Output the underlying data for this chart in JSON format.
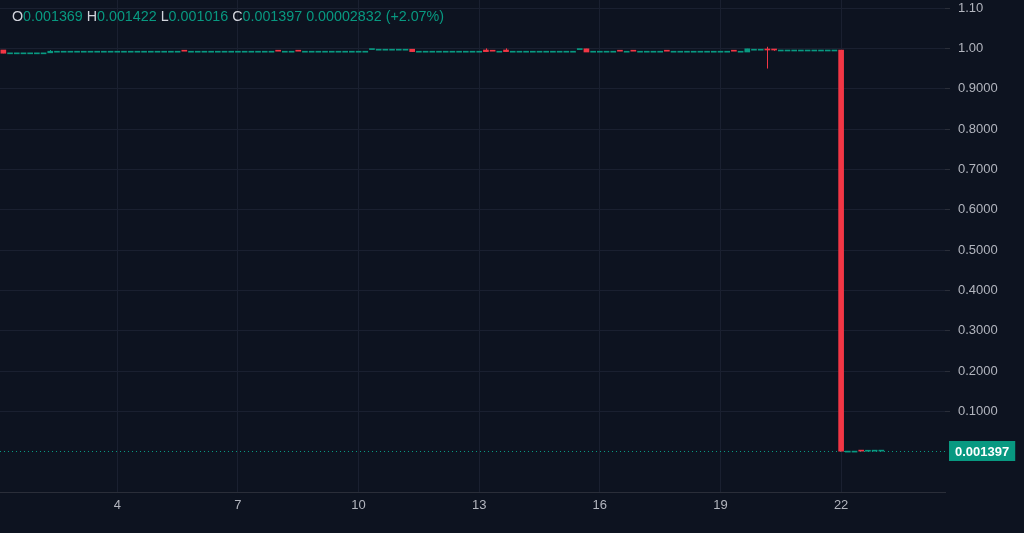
{
  "chart_data": {
    "type": "candlestick",
    "title": "O0.001369 H0.001422 L0.001016 C0.001397 0.00002832 (+2.07%)",
    "categories": [
      null,
      null,
      null,
      null,
      null,
      null,
      null,
      null,
      null,
      null,
      null,
      null,
      null,
      null,
      null,
      null,
      null,
      "4",
      null,
      null,
      null,
      null,
      null,
      null,
      null,
      null,
      null,
      null,
      null,
      null,
      null,
      null,
      null,
      null,
      null,
      "7",
      null,
      null,
      null,
      null,
      null,
      null,
      null,
      null,
      null,
      null,
      null,
      null,
      null,
      null,
      null,
      null,
      null,
      "10",
      null,
      null,
      null,
      null,
      null,
      null,
      null,
      null,
      null,
      null,
      null,
      null,
      null,
      null,
      null,
      null,
      null,
      "13",
      null,
      null,
      null,
      null,
      null,
      null,
      null,
      null,
      null,
      null,
      null,
      null,
      null,
      null,
      null,
      null,
      null,
      "16",
      null,
      null,
      null,
      null,
      null,
      null,
      null,
      null,
      null,
      null,
      null,
      null,
      null,
      null,
      null,
      null,
      null,
      "19",
      null,
      null,
      null,
      null,
      null,
      null,
      null,
      null,
      null,
      null,
      null,
      null,
      null,
      null,
      null,
      null,
      null,
      "22",
      null,
      null,
      null,
      null,
      null,
      null,
      null,
      null,
      null,
      null,
      null,
      null,
      null,
      null,
      null
    ],
    "ohlc": [
      [
        0.996,
        0.996,
        0.988,
        0.988
      ],
      [
        0.989,
        0.989,
        0.989,
        0.989
      ],
      [
        0.989,
        0.989,
        0.989,
        0.989
      ],
      [
        0.989,
        0.989,
        0.989,
        0.989
      ],
      [
        0.989,
        0.989,
        0.989,
        0.989
      ],
      [
        0.989,
        0.989,
        0.989,
        0.989
      ],
      [
        0.989,
        0.989,
        0.989,
        0.989
      ],
      [
        0.989,
        0.996,
        0.989,
        0.993
      ],
      [
        0.993,
        0.993,
        0.993,
        0.993
      ],
      [
        0.993,
        0.993,
        0.993,
        0.993
      ],
      [
        0.993,
        0.993,
        0.993,
        0.993
      ],
      [
        0.993,
        0.993,
        0.993,
        0.993
      ],
      [
        0.993,
        0.993,
        0.993,
        0.993
      ],
      [
        0.993,
        0.993,
        0.993,
        0.993
      ],
      [
        0.993,
        0.993,
        0.993,
        0.993
      ],
      [
        0.993,
        0.993,
        0.993,
        0.993
      ],
      [
        0.993,
        0.993,
        0.993,
        0.993
      ],
      [
        0.993,
        0.993,
        0.993,
        0.993
      ],
      [
        0.993,
        0.993,
        0.993,
        0.993
      ],
      [
        0.993,
        0.993,
        0.993,
        0.993
      ],
      [
        0.993,
        0.993,
        0.993,
        0.993
      ],
      [
        0.993,
        0.993,
        0.993,
        0.993
      ],
      [
        0.993,
        0.993,
        0.993,
        0.993
      ],
      [
        0.993,
        0.993,
        0.993,
        0.993
      ],
      [
        0.993,
        0.993,
        0.993,
        0.993
      ],
      [
        0.993,
        0.993,
        0.993,
        0.993
      ],
      [
        0.993,
        0.993,
        0.993,
        0.993
      ],
      [
        0.994,
        0.994,
        0.993,
        0.993
      ],
      [
        0.993,
        0.993,
        0.993,
        0.993
      ],
      [
        0.993,
        0.993,
        0.993,
        0.993
      ],
      [
        0.993,
        0.993,
        0.993,
        0.993
      ],
      [
        0.993,
        0.993,
        0.993,
        0.993
      ],
      [
        0.993,
        0.993,
        0.993,
        0.993
      ],
      [
        0.993,
        0.993,
        0.993,
        0.993
      ],
      [
        0.993,
        0.993,
        0.993,
        0.993
      ],
      [
        0.993,
        0.993,
        0.993,
        0.993
      ],
      [
        0.993,
        0.993,
        0.993,
        0.993
      ],
      [
        0.993,
        0.993,
        0.993,
        0.993
      ],
      [
        0.993,
        0.993,
        0.993,
        0.993
      ],
      [
        0.993,
        0.993,
        0.993,
        0.993
      ],
      [
        0.993,
        0.993,
        0.993,
        0.993
      ],
      [
        0.994,
        0.994,
        0.993,
        0.993
      ],
      [
        0.993,
        0.993,
        0.993,
        0.993
      ],
      [
        0.993,
        0.993,
        0.993,
        0.993
      ],
      [
        0.994,
        0.994,
        0.993,
        0.993
      ],
      [
        0.993,
        0.993,
        0.993,
        0.993
      ],
      [
        0.993,
        0.993,
        0.993,
        0.993
      ],
      [
        0.993,
        0.993,
        0.993,
        0.993
      ],
      [
        0.993,
        0.993,
        0.993,
        0.993
      ],
      [
        0.993,
        0.993,
        0.993,
        0.993
      ],
      [
        0.993,
        0.993,
        0.993,
        0.993
      ],
      [
        0.993,
        0.993,
        0.993,
        0.993
      ],
      [
        0.993,
        0.993,
        0.993,
        0.993
      ],
      [
        0.993,
        0.993,
        0.993,
        0.993
      ],
      [
        0.993,
        0.993,
        0.993,
        0.993
      ],
      [
        0.997,
        0.998,
        0.997,
        0.998
      ],
      [
        0.998,
        0.998,
        0.998,
        0.998
      ],
      [
        0.998,
        0.998,
        0.998,
        0.998
      ],
      [
        0.998,
        0.998,
        0.998,
        0.998
      ],
      [
        0.998,
        0.998,
        0.998,
        0.998
      ],
      [
        0.998,
        0.998,
        0.998,
        0.998
      ],
      [
        0.998,
        0.998,
        0.991,
        0.992
      ],
      [
        0.993,
        0.993,
        0.993,
        0.993
      ],
      [
        0.993,
        0.993,
        0.993,
        0.993
      ],
      [
        0.993,
        0.993,
        0.993,
        0.993
      ],
      [
        0.993,
        0.993,
        0.993,
        0.993
      ],
      [
        0.993,
        0.993,
        0.993,
        0.993
      ],
      [
        0.993,
        0.993,
        0.993,
        0.993
      ],
      [
        0.993,
        0.993,
        0.993,
        0.993
      ],
      [
        0.993,
        0.993,
        0.993,
        0.993
      ],
      [
        0.993,
        0.993,
        0.993,
        0.993
      ],
      [
        0.993,
        0.993,
        0.993,
        0.993
      ],
      [
        0.996,
        1.0,
        0.992,
        0.992
      ],
      [
        0.994,
        0.994,
        0.993,
        0.993
      ],
      [
        0.993,
        0.993,
        0.993,
        0.993
      ],
      [
        0.996,
        1.0,
        0.992,
        0.992
      ],
      [
        0.993,
        0.993,
        0.993,
        0.993
      ],
      [
        0.993,
        0.993,
        0.993,
        0.993
      ],
      [
        0.993,
        0.993,
        0.993,
        0.993
      ],
      [
        0.993,
        0.993,
        0.993,
        0.993
      ],
      [
        0.993,
        0.993,
        0.993,
        0.993
      ],
      [
        0.993,
        0.993,
        0.993,
        0.993
      ],
      [
        0.993,
        0.993,
        0.993,
        0.993
      ],
      [
        0.993,
        0.993,
        0.993,
        0.993
      ],
      [
        0.993,
        0.993,
        0.993,
        0.993
      ],
      [
        0.993,
        0.993,
        0.993,
        0.993
      ],
      [
        0.997,
        0.998,
        0.997,
        0.998
      ],
      [
        0.999,
        0.999,
        0.991,
        0.991
      ],
      [
        0.993,
        0.993,
        0.993,
        0.993
      ],
      [
        0.993,
        0.993,
        0.993,
        0.993
      ],
      [
        0.993,
        0.993,
        0.993,
        0.993
      ],
      [
        0.993,
        0.993,
        0.993,
        0.993
      ],
      [
        0.994,
        0.994,
        0.993,
        0.993
      ],
      [
        0.993,
        0.993,
        0.993,
        0.993
      ],
      [
        0.994,
        0.994,
        0.993,
        0.993
      ],
      [
        0.993,
        0.993,
        0.993,
        0.993
      ],
      [
        0.993,
        0.993,
        0.993,
        0.993
      ],
      [
        0.993,
        0.993,
        0.993,
        0.993
      ],
      [
        0.993,
        0.993,
        0.993,
        0.993
      ],
      [
        0.994,
        0.994,
        0.993,
        0.993
      ],
      [
        0.993,
        0.993,
        0.993,
        0.993
      ],
      [
        0.993,
        0.993,
        0.993,
        0.993
      ],
      [
        0.993,
        0.993,
        0.993,
        0.993
      ],
      [
        0.993,
        0.993,
        0.993,
        0.993
      ],
      [
        0.993,
        0.993,
        0.993,
        0.993
      ],
      [
        0.993,
        0.993,
        0.993,
        0.993
      ],
      [
        0.993,
        0.993,
        0.993,
        0.993
      ],
      [
        0.993,
        0.993,
        0.993,
        0.993
      ],
      [
        0.993,
        0.993,
        0.993,
        0.993
      ],
      [
        0.994,
        0.994,
        0.993,
        0.993
      ],
      [
        0.993,
        0.993,
        0.993,
        0.993
      ],
      [
        0.991,
        0.999,
        0.991,
        0.999
      ],
      [
        0.998,
        0.998,
        0.998,
        0.998
      ],
      [
        0.998,
        0.998,
        0.998,
        0.998
      ],
      [
        0.998,
        1.004,
        0.95,
        0.996
      ],
      [
        0.997,
        0.998,
        0.994,
        0.996
      ],
      [
        0.996,
        0.996,
        0.996,
        0.996
      ],
      [
        0.996,
        0.996,
        0.996,
        0.996
      ],
      [
        0.996,
        0.996,
        0.996,
        0.996
      ],
      [
        0.996,
        0.996,
        0.996,
        0.996
      ],
      [
        0.996,
        0.996,
        0.996,
        0.996
      ],
      [
        0.996,
        0.996,
        0.996,
        0.996
      ],
      [
        0.996,
        0.996,
        0.996,
        0.996
      ],
      [
        0.996,
        0.996,
        0.996,
        0.996
      ],
      [
        0.996,
        0.996,
        0.996,
        0.996
      ],
      [
        0.996,
        0.996,
        0.001,
        0.0014
      ],
      [
        0.0014,
        0.0014,
        0.0014,
        0.0014
      ],
      [
        0.0014,
        0.0014,
        0.0014,
        0.0014
      ],
      [
        0.0016,
        0.0016,
        0.0014,
        0.0014
      ],
      [
        0.0011,
        0.0012,
        0.0011,
        0.0012
      ],
      [
        0.0013,
        0.0014,
        0.0013,
        0.0014
      ],
      [
        0.001369,
        0.001422,
        0.001016,
        0.001397
      ],
      null,
      null,
      null,
      null,
      null,
      null,
      null,
      null,
      null
    ],
    "colors": [
      "#f23645",
      "#089981",
      "#089981",
      "#089981",
      "#089981",
      "#089981",
      "#089981",
      "#089981",
      "#089981",
      "#089981",
      "#089981",
      "#089981",
      "#089981",
      "#089981",
      "#089981",
      "#089981",
      "#089981",
      "#089981",
      "#089981",
      "#089981",
      "#089981",
      "#089981",
      "#089981",
      "#089981",
      "#089981",
      "#089981",
      "#089981",
      "#f23645",
      "#089981",
      "#089981",
      "#089981",
      "#089981",
      "#089981",
      "#089981",
      "#089981",
      "#089981",
      "#089981",
      "#089981",
      "#089981",
      "#089981",
      "#089981",
      "#f23645",
      "#089981",
      "#089981",
      "#f23645",
      "#089981",
      "#089981",
      "#089981",
      "#089981",
      "#089981",
      "#089981",
      "#089981",
      "#089981",
      "#089981",
      "#089981",
      "#089981",
      "#089981",
      "#089981",
      "#089981",
      "#089981",
      "#089981",
      "#f23645",
      "#089981",
      "#089981",
      "#089981",
      "#089981",
      "#089981",
      "#089981",
      "#089981",
      "#089981",
      "#089981",
      "#089981",
      "#f23645",
      "#f23645",
      "#089981",
      "#f23645",
      "#089981",
      "#089981",
      "#089981",
      "#089981",
      "#089981",
      "#089981",
      "#089981",
      "#089981",
      "#089981",
      "#089981",
      "#089981",
      "#f23645",
      "#089981",
      "#089981",
      "#089981",
      "#089981",
      "#f23645",
      "#089981",
      "#f23645",
      "#089981",
      "#089981",
      "#089981",
      "#089981",
      "#f23645",
      "#089981",
      "#089981",
      "#089981",
      "#089981",
      "#089981",
      "#089981",
      "#089981",
      "#089981",
      "#089981",
      "#f23645",
      "#089981",
      "#089981",
      "#089981",
      "#089981",
      "#f23645",
      "#f23645",
      "#089981",
      "#089981",
      "#089981",
      "#089981",
      "#089981",
      "#089981",
      "#089981",
      "#089981",
      "#089981",
      "#f23645",
      "#089981",
      "#089981",
      "#f23645",
      "#089981",
      "#089981",
      "#089981",
      null,
      null,
      null,
      null,
      null,
      null,
      null,
      null,
      null
    ],
    "ylim": [
      -0.1,
      1.12
    ],
    "yticks": [
      {
        "value": 0.1,
        "label": "0.1000"
      },
      {
        "value": 0.2,
        "label": "0.2000"
      },
      {
        "value": 0.3,
        "label": "0.3000"
      },
      {
        "value": 0.4,
        "label": "0.4000"
      },
      {
        "value": 0.5,
        "label": "0.5000"
      },
      {
        "value": 0.6,
        "label": "0.6000"
      },
      {
        "value": 0.7,
        "label": "0.7000"
      },
      {
        "value": 0.8,
        "label": "0.8000"
      },
      {
        "value": 0.9,
        "label": "0.9000"
      },
      {
        "value": 1,
        "label": "1.00"
      },
      {
        "value": 1.1,
        "label": "1.10"
      }
    ],
    "ref_lines": [
      {
        "axis": "y",
        "value": 0.001397,
        "label": "0.001397",
        "color": "#089981",
        "line_style": "dotted"
      }
    ],
    "grid": true
  }
}
